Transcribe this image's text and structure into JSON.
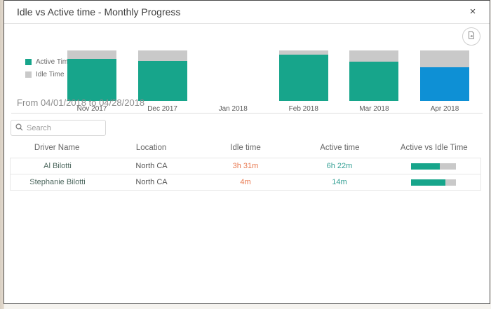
{
  "modal": {
    "title": "Idle vs Active time - Monthly Progress",
    "close_symbol": "×"
  },
  "icons": {
    "close": "x-close",
    "export": "export-chart-page-with-arrow",
    "search": "magnifier"
  },
  "chart_data": {
    "type": "bar",
    "stacked": true,
    "categories": [
      "Nov 2017",
      "Dec 2017",
      "Jan 2018",
      "Feb 2018",
      "Mar 2018",
      "Apr 2018"
    ],
    "series": [
      {
        "name": "Active Time",
        "values": [
          83,
          79,
          0,
          92,
          78,
          67
        ]
      },
      {
        "name": "Idle Time",
        "values": [
          17,
          21,
          0,
          8,
          22,
          33
        ]
      }
    ],
    "unit": "percent of month total time",
    "selected_category": "Apr 2018",
    "legend_position": "left",
    "colors": {
      "active": "#17a58b",
      "idle": "#c9c9c9",
      "selected_active": "#0e90d5"
    }
  },
  "period": {
    "label": "From 04/01/2018 to 04/28/2018"
  },
  "search": {
    "placeholder": "Search",
    "value": ""
  },
  "table": {
    "columns": [
      "Driver Name",
      "Location",
      "Idle time",
      "Active time",
      "Active vs Idle Time"
    ],
    "rows": [
      {
        "driver": "Al Bilotti",
        "location": "North CA",
        "idle": "3h 31m",
        "active": "6h 22m",
        "active_pct": 64
      },
      {
        "driver": "Stephanie Bilotti",
        "location": "North CA",
        "idle": "4m",
        "active": "14m",
        "active_pct": 77
      }
    ]
  },
  "colors": {
    "idle_text": "#e8784f",
    "active_text": "#35a095",
    "progress_fill": "#17a58b",
    "progress_track": "#c9c9c9"
  }
}
